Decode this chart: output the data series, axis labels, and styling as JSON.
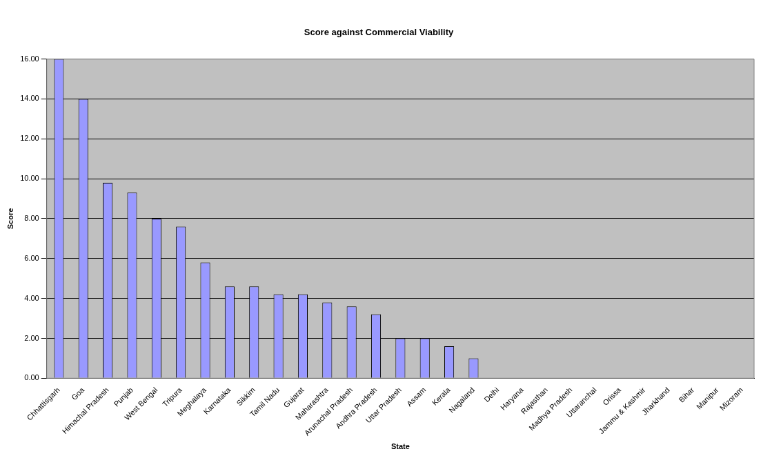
{
  "chart_data": {
    "type": "bar",
    "title": "Score against Commercial Viability",
    "xlabel": "State",
    "ylabel": "Score",
    "categories": [
      "Chhattisgarh",
      "Goa",
      "Himachal Pradesh",
      "Punjab",
      "West Bengal",
      "Tripura",
      "Meghalaya",
      "Karnataka",
      "Sikkim",
      "Tamil Nadu",
      "Gujarat",
      "Maharashtra",
      "Arunachal Pradesh",
      "Andhra Pradesh",
      "Uttar Pradesh",
      "Assam",
      "Kerala",
      "Nagaland",
      "Delhi",
      "Haryana",
      "Rajasthan",
      "Madhya Pradesh",
      "Uttaranchal",
      "Orissa",
      "Jammu & Kashmir",
      "Jharkhand",
      "Bihar",
      "Manipur",
      "Mizoram"
    ],
    "values": [
      16,
      14,
      9.8,
      9.3,
      8,
      7.6,
      5.8,
      4.6,
      4.6,
      4.2,
      4.2,
      3.8,
      3.6,
      3.2,
      2,
      2,
      1.6,
      1,
      0,
      0,
      0,
      0,
      0,
      0,
      0,
      0,
      0,
      0,
      0
    ],
    "color": "#9999ff",
    "ylim": [
      0,
      16
    ],
    "yticks": [
      {
        "value": 0,
        "label": "0.00"
      },
      {
        "value": 2,
        "label": "2.00"
      },
      {
        "value": 4,
        "label": "4.00"
      },
      {
        "value": 6,
        "label": "6.00"
      },
      {
        "value": 8,
        "label": "8.00"
      },
      {
        "value": 10,
        "label": "10.00"
      },
      {
        "value": 12,
        "label": "12.00"
      },
      {
        "value": 14,
        "label": "14.00"
      },
      {
        "value": 16,
        "label": "16.00"
      }
    ],
    "grid": "y",
    "legend": false
  }
}
